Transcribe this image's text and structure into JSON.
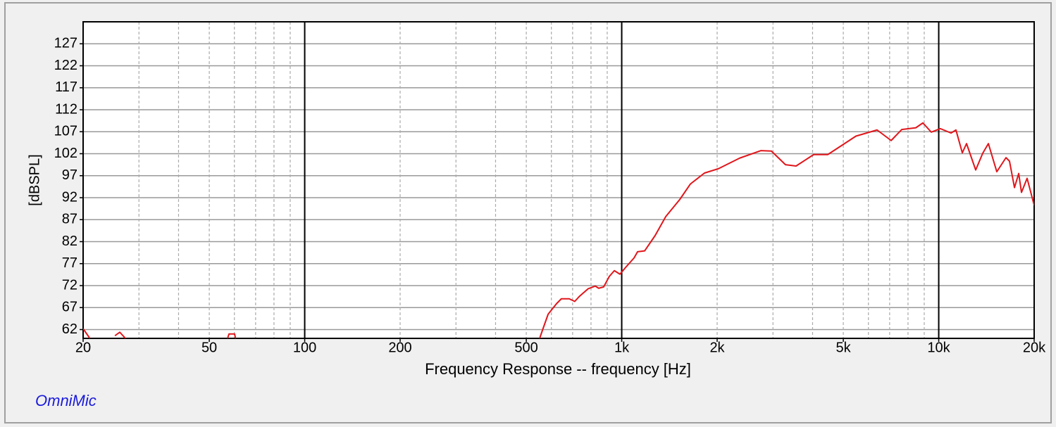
{
  "chart_data": {
    "type": "line",
    "title": "OmniMic",
    "x_label": "Frequency Response -- frequency [Hz]",
    "y_label": "[dBSPL]",
    "log_x": true,
    "grid": true,
    "xlim": [
      20,
      20000
    ],
    "ylim": [
      60,
      132
    ],
    "xticks": [
      20,
      50,
      100,
      200,
      500,
      {
        "value": 1000,
        "label": "1k"
      },
      {
        "value": 2000,
        "label": "2k"
      },
      {
        "value": 5000,
        "label": "5k"
      },
      {
        "value": 10000,
        "label": "10k"
      },
      {
        "value": 20000,
        "label": "20k"
      }
    ],
    "x_major_grid": [
      100,
      1000,
      10000
    ],
    "x_minor_grid": [
      30,
      40,
      50,
      60,
      70,
      80,
      90,
      200,
      300,
      400,
      500,
      600,
      700,
      800,
      900,
      2000,
      3000,
      4000,
      5000,
      6000,
      7000,
      8000,
      9000
    ],
    "yticks": [
      62,
      67,
      72,
      77,
      82,
      87,
      92,
      97,
      102,
      107,
      112,
      117,
      122,
      127
    ],
    "x": [
      20,
      21,
      23,
      25.2,
      26.1,
      27.2,
      40,
      57.1,
      57.7,
      60.1,
      60.5,
      200,
      551,
      562,
      586,
      623,
      645,
      683,
      711,
      734,
      784,
      825,
      846,
      877,
      914,
      948,
      987,
      1028,
      1094,
      1122,
      1181,
      1275,
      1377,
      1525,
      1646,
      1824,
      2020,
      2356,
      2746,
      2966,
      3285,
      3548,
      4032,
      4466,
      4948,
      5480,
      6390,
      7079,
      7642,
      8468,
      8913,
      9476,
      10124,
      10936,
      11333,
      11868,
      12238,
      13080,
      13766,
      14342,
      15247,
      16300,
      16720,
      17336,
      17876,
      18240,
      19000,
      20000
    ],
    "series": [
      {
        "name": "Frequency Response",
        "color": "#e0161b",
        "values": [
          62.2,
          60,
          null,
          60.6,
          61.4,
          60,
          null,
          60,
          61,
          61,
          60,
          null,
          60,
          61.8,
          65.5,
          67.9,
          69.0,
          69.0,
          68.4,
          69.5,
          71.3,
          71.9,
          71.4,
          71.7,
          74.1,
          75.4,
          74.6,
          76.1,
          78.3,
          79.7,
          79.9,
          83.4,
          87.7,
          91.6,
          95.1,
          97.6,
          98.6,
          101.0,
          102.7,
          102.6,
          99.5,
          99.2,
          101.8,
          101.8,
          103.9,
          106.0,
          107.4,
          105.0,
          107.5,
          107.9,
          109.0,
          106.9,
          107.7,
          106.7,
          107.4,
          102.2,
          104.3,
          98.3,
          102.1,
          104.3,
          97.9,
          101.1,
          100.3,
          94.3,
          97.5,
          93.2,
          96.4,
          90.3
        ]
      }
    ]
  }
}
